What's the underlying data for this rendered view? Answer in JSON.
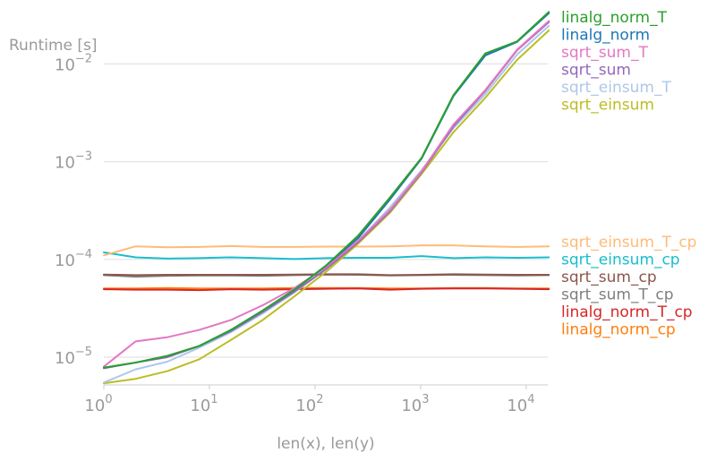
{
  "chart_data": {
    "type": "line",
    "xscale": "log",
    "yscale": "log",
    "xlabel": "len(x), len(y)",
    "ylabel": "Runtime [s]",
    "xlim": [
      1,
      16000
    ],
    "ylim": [
      5.2e-06,
      0.035
    ],
    "grid": "horizontal",
    "legend_placement": "right",
    "xticks": [
      {
        "value": 1,
        "base": "10",
        "exp": "0"
      },
      {
        "value": 10,
        "base": "10",
        "exp": "1"
      },
      {
        "value": 100,
        "base": "10",
        "exp": "2"
      },
      {
        "value": 1000,
        "base": "10",
        "exp": "3"
      },
      {
        "value": 10000,
        "base": "10",
        "exp": "4"
      }
    ],
    "yticks": [
      {
        "value": 1e-05,
        "base": "10",
        "exp": "−5"
      },
      {
        "value": 0.0001,
        "base": "10",
        "exp": "−4"
      },
      {
        "value": 0.001,
        "base": "10",
        "exp": "−3"
      },
      {
        "value": 0.01,
        "base": "10",
        "exp": "−2"
      }
    ],
    "x": [
      1,
      2,
      4,
      8,
      16,
      32,
      64,
      128,
      256,
      512,
      1024,
      2048,
      4096,
      8192,
      16384
    ],
    "series": [
      {
        "name": "linalg_norm_T",
        "color": "#2ca02c",
        "legend_group": "top",
        "values": [
          7.8e-06,
          8.8e-06,
          1.03e-05,
          1.3e-05,
          1.9e-05,
          3e-05,
          4.9e-05,
          8.7e-05,
          0.000175,
          0.00043,
          0.0011,
          0.0048,
          0.0128,
          0.017,
          0.034
        ]
      },
      {
        "name": "linalg_norm",
        "color": "#1f77b4",
        "legend_group": "top",
        "values": [
          7.8e-06,
          8.8e-06,
          1.03e-05,
          1.3e-05,
          1.9e-05,
          3e-05,
          4.9e-05,
          8.7e-05,
          0.000165,
          0.00041,
          0.00108,
          0.0047,
          0.0122,
          0.0168,
          0.033
        ]
      },
      {
        "name": "sqrt_sum_T",
        "color": "#e377c2",
        "legend_group": "top",
        "values": [
          8e-06,
          1.45e-05,
          1.6e-05,
          1.9e-05,
          2.4e-05,
          3.4e-05,
          5.1e-05,
          8.4e-05,
          0.000155,
          0.00032,
          0.0008,
          0.0024,
          0.0054,
          0.014,
          0.0275
        ]
      },
      {
        "name": "sqrt_sum",
        "color": "#9467bd",
        "legend_group": "top",
        "values": [
          7.7e-06,
          8.8e-06,
          1e-05,
          1.3e-05,
          1.85e-05,
          2.9e-05,
          4.7e-05,
          8e-05,
          0.00015,
          0.00031,
          0.00078,
          0.0023,
          0.0053,
          0.0138,
          0.0268
        ]
      },
      {
        "name": "sqrt_einsum_T",
        "color": "#aec7e8",
        "legend_group": "top",
        "values": [
          5.5e-06,
          7.5e-06,
          9e-06,
          1.25e-05,
          1.8e-05,
          2.8e-05,
          4.6e-05,
          8e-05,
          0.000155,
          0.00034,
          0.00082,
          0.0022,
          0.0049,
          0.0125,
          0.0245
        ]
      },
      {
        "name": "sqrt_einsum",
        "color": "#bcbd22",
        "legend_group": "top",
        "values": [
          5.4e-06,
          6e-06,
          7.2e-06,
          9.5e-06,
          1.5e-05,
          2.4e-05,
          4.2e-05,
          7.5e-05,
          0.000145,
          0.0003,
          0.00075,
          0.002,
          0.0045,
          0.011,
          0.022
        ]
      },
      {
        "name": "sqrt_einsum_T_cp",
        "color": "#ffbb78",
        "legend_group": "bottom",
        "values": [
          0.00011,
          0.000136,
          0.000133,
          0.000134,
          0.000137,
          0.000134,
          0.000134,
          0.000135,
          0.000135,
          0.000136,
          0.000139,
          0.000139,
          0.000136,
          0.000134,
          0.000136
        ]
      },
      {
        "name": "sqrt_einsum_cp",
        "color": "#17becf",
        "legend_group": "bottom",
        "values": [
          0.000118,
          0.000105,
          0.000102,
          0.000103,
          0.000105,
          0.000103,
          0.000101,
          0.000103,
          0.000104,
          0.000104,
          0.000108,
          0.000103,
          0.000105,
          0.000104,
          0.000105
        ]
      },
      {
        "name": "sqrt_sum_cp",
        "color": "#8c564b",
        "legend_group": "bottom",
        "values": [
          7e-05,
          6.9e-05,
          6.95e-05,
          6.95e-05,
          6.95e-05,
          6.95e-05,
          7e-05,
          7.05e-05,
          7.05e-05,
          6.9e-05,
          6.95e-05,
          7.05e-05,
          7e-05,
          6.95e-05,
          6.95e-05
        ]
      },
      {
        "name": "sqrt_sum_T_cp",
        "color": "#7f7f7f",
        "legend_group": "bottom",
        "values": [
          6.9e-05,
          6.65e-05,
          6.8e-05,
          6.85e-05,
          6.85e-05,
          6.8e-05,
          6.9e-05,
          7e-05,
          6.95e-05,
          6.85e-05,
          6.9e-05,
          6.95e-05,
          6.9e-05,
          6.85e-05,
          6.9e-05
        ]
      },
      {
        "name": "linalg_norm_T_cp",
        "color": "#d62728",
        "legend_group": "bottom",
        "values": [
          4.95e-05,
          4.9e-05,
          4.9e-05,
          4.85e-05,
          4.95e-05,
          4.9e-05,
          4.95e-05,
          5e-05,
          5.05e-05,
          4.9e-05,
          5e-05,
          5.05e-05,
          5.05e-05,
          5e-05,
          4.95e-05
        ]
      },
      {
        "name": "linalg_norm_cp",
        "color": "#ff7f0e",
        "legend_group": "bottom",
        "values": [
          5.05e-05,
          5.05e-05,
          5.1e-05,
          5.05e-05,
          5.05e-05,
          5.05e-05,
          5.1e-05,
          5.1e-05,
          5.1e-05,
          5.05e-05,
          5.05e-05,
          5.1e-05,
          5.1e-05,
          5.05e-05,
          5.05e-05
        ]
      }
    ]
  }
}
